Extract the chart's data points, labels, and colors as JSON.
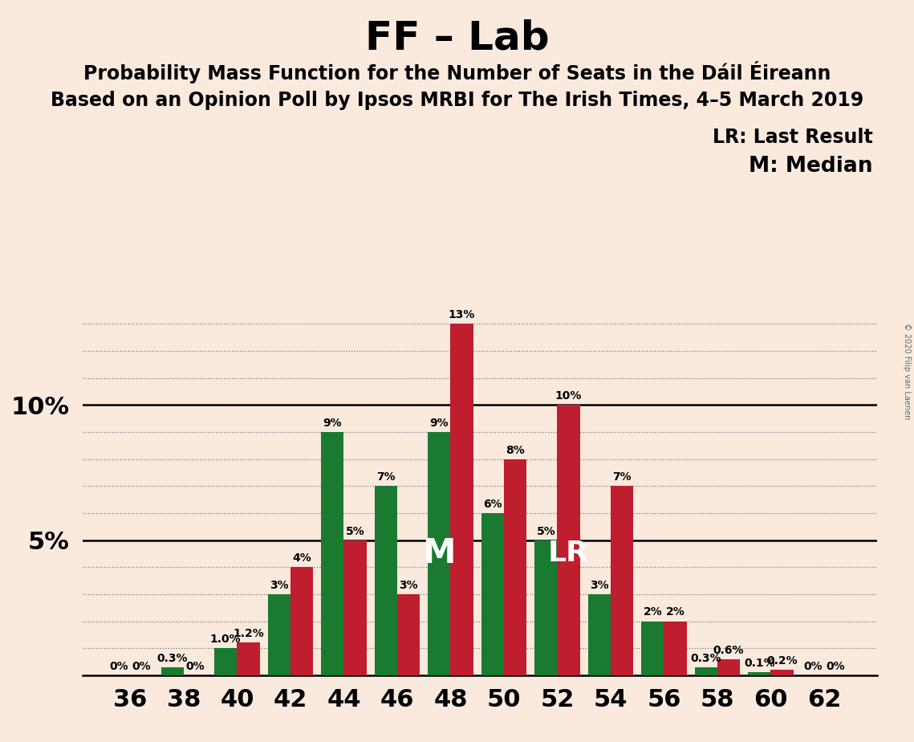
{
  "title": "FF – Lab",
  "subtitle1": "Probability Mass Function for the Number of Seats in the Dáil Éireann",
  "subtitle2": "Based on an Opinion Poll by Ipsos MRBI for The Irish Times, 4–5 March 2019",
  "copyright": "© 2020 Filip van Laenen",
  "legend_lr": "LR: Last Result",
  "legend_m": "M: Median",
  "seats": [
    36,
    38,
    40,
    42,
    44,
    46,
    48,
    50,
    52,
    54,
    56,
    58,
    60,
    62
  ],
  "red_values": [
    0.0,
    0.0,
    1.2,
    4.0,
    5.0,
    3.0,
    13.0,
    8.0,
    10.0,
    7.0,
    2.0,
    0.6,
    0.2,
    0.0
  ],
  "green_values": [
    0.0,
    0.3,
    1.0,
    3.0,
    9.0,
    7.0,
    9.0,
    6.0,
    5.0,
    3.0,
    2.0,
    0.3,
    0.1,
    0.0
  ],
  "red_labels": [
    "0%",
    "0%",
    "1.2%",
    "4%",
    "5%",
    "3%",
    "13%",
    "8%",
    "10%",
    "7%",
    "2%",
    "0.6%",
    "0.2%",
    "0%"
  ],
  "green_labels": [
    "0%",
    "0.3%",
    "1.0%",
    "3%",
    "9%",
    "7%",
    "9%",
    "6%",
    "5%",
    "3%",
    "2%",
    "0.3%",
    "0.1%",
    "0%"
  ],
  "red_color": "#be1e2d",
  "green_color": "#1a7a30",
  "background_color": "#faeade",
  "median_seat": 48,
  "lr_seat": 52,
  "ylim_max": 14.0,
  "bar_width": 0.85,
  "title_fontsize": 36,
  "subtitle_fontsize": 17,
  "axis_tick_fontsize": 22,
  "label_fontsize": 10,
  "legend_fontsize": 17,
  "marker_fontsize": 30
}
